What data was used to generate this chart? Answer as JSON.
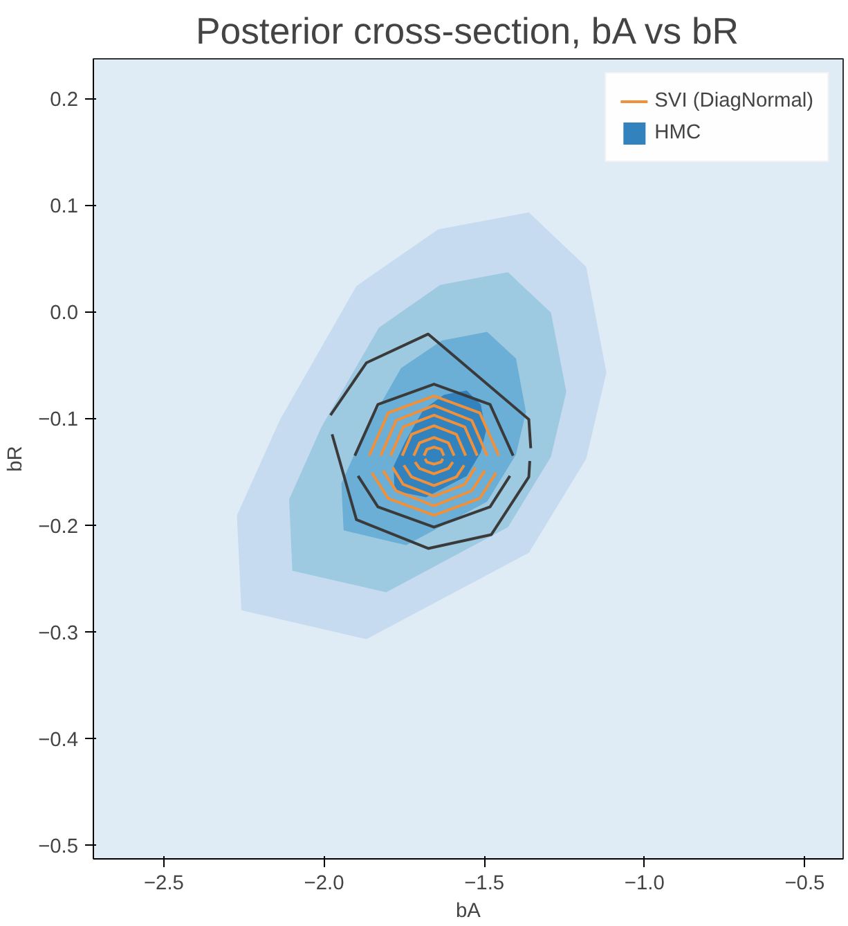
{
  "chart_data": {
    "type": "line",
    "title": "Posterior cross-section, bA vs bR",
    "xlabel": "bA",
    "ylabel": "bR",
    "xlim": [
      -2.72,
      -0.38
    ],
    "ylim": [
      -0.513,
      0.237
    ],
    "xticks": [
      {
        "value": -2.5,
        "label": "−2.5"
      },
      {
        "value": -2.0,
        "label": "−2.0"
      },
      {
        "value": -1.5,
        "label": "−1.5"
      },
      {
        "value": -1.0,
        "label": "−1.0"
      },
      {
        "value": -0.5,
        "label": "−0.5"
      }
    ],
    "yticks": [
      {
        "value": -0.5,
        "label": "−0.5"
      },
      {
        "value": -0.4,
        "label": "−0.4"
      },
      {
        "value": -0.3,
        "label": "−0.3"
      },
      {
        "value": -0.2,
        "label": "−0.2"
      },
      {
        "value": -0.1,
        "label": "−0.1"
      },
      {
        "value": 0.0,
        "label": "0.0"
      },
      0.1,
      0.2
    ],
    "grid": false,
    "legend": "top right",
    "series": [
      {
        "type": "area",
        "color": "#c6dbef",
        "x": [
          -1.361,
          -1.182,
          -1.119,
          -1.182,
          -1.361,
          -1.868,
          -2.258,
          -2.272,
          -2.137,
          -1.899,
          -1.644
        ],
        "values": [
          0.093,
          0.042,
          -0.057,
          -0.138,
          -0.226,
          -0.307,
          -0.28,
          -0.191,
          -0.101,
          0.024,
          0.077
        ]
      },
      {
        "type": "area",
        "color": "#9ecae1",
        "x": [
          -1.426,
          -1.292,
          -1.244,
          -1.292,
          -1.426,
          -1.806,
          -2.099,
          -2.109,
          -2.008,
          -1.829,
          -1.638
        ],
        "values": [
          0.037,
          -0.001,
          -0.075,
          -0.136,
          -0.202,
          -0.263,
          -0.243,
          -0.176,
          -0.108,
          -0.015,
          0.025
        ]
      },
      {
        "type": "area",
        "color": "#6baed6",
        "x": [
          -1.491,
          -1.401,
          -1.37,
          -1.401,
          -1.491,
          -1.744,
          -1.939,
          -1.946,
          -1.879,
          -1.76,
          -1.632
        ],
        "values": [
          -0.019,
          -0.044,
          -0.094,
          -0.134,
          -0.178,
          -0.219,
          -0.205,
          -0.161,
          -0.116,
          -0.053,
          -0.027
        ]
      },
      {
        "type": "area",
        "name": "HMC",
        "color": "#3182bd",
        "x": [
          -1.555,
          -1.511,
          -1.495,
          -1.511,
          -1.555,
          -1.682,
          -1.78,
          -1.783,
          -1.749,
          -1.69,
          -1.626
        ],
        "values": [
          -0.074,
          -0.087,
          -0.112,
          -0.132,
          -0.154,
          -0.174,
          -0.168,
          -0.145,
          -0.123,
          -0.092,
          -0.078
        ]
      },
      {
        "color": "#3a3a3a",
        "x": [
          -1.98,
          -1.868,
          -1.675,
          -1.361,
          -1.355
        ],
        "values": [
          -0.097,
          -0.048,
          -0.021,
          -0.101,
          -0.128
        ]
      },
      {
        "color": "#3a3a3a",
        "x": [
          -1.975,
          -1.899,
          -1.675,
          -1.478,
          -1.361,
          -1.358
        ],
        "values": [
          -0.115,
          -0.195,
          -0.222,
          -0.209,
          -0.155,
          -0.14
        ]
      },
      {
        "color": "#3a3a3a",
        "x": [
          -1.904,
          -1.832,
          -1.657,
          -1.482,
          -1.41
        ],
        "values": [
          -0.135,
          -0.087,
          -0.068,
          -0.087,
          -0.135
        ]
      },
      {
        "color": "#3a3a3a",
        "x": [
          -1.894,
          -1.832,
          -1.657,
          -1.482,
          -1.42
        ],
        "values": [
          -0.154,
          -0.183,
          -0.202,
          -0.183,
          -0.154
        ]
      },
      {
        "name": "SVI (DiagNormal)",
        "color": "#f0903a",
        "x": [
          -1.859,
          -1.8,
          -1.657,
          -1.514,
          -1.455
        ],
        "values": [
          -0.135,
          -0.095,
          -0.079,
          -0.095,
          -0.135
        ]
      },
      {
        "color": "#f0903a",
        "x": [
          -1.851,
          -1.8,
          -1.657,
          -1.514,
          -1.463
        ],
        "values": [
          -0.151,
          -0.175,
          -0.191,
          -0.175,
          -0.151
        ]
      },
      {
        "color": "#f0903a",
        "x": [
          -1.823,
          -1.775,
          -1.657,
          -1.539,
          -1.491
        ],
        "values": [
          -0.135,
          -0.102,
          -0.088,
          -0.102,
          -0.135
        ]
      },
      {
        "color": "#f0903a",
        "x": [
          -1.816,
          -1.775,
          -1.657,
          -1.539,
          -1.498
        ],
        "values": [
          -0.149,
          -0.168,
          -0.182,
          -0.168,
          -0.149
        ]
      },
      {
        "color": "#f0903a",
        "x": [
          -1.792,
          -1.753,
          -1.657,
          -1.561,
          -1.522
        ],
        "values": [
          -0.135,
          -0.108,
          -0.097,
          -0.108,
          -0.135
        ]
      },
      {
        "color": "#f0903a",
        "x": [
          -1.786,
          -1.753,
          -1.657,
          -1.561,
          -1.528
        ],
        "values": [
          -0.146,
          -0.162,
          -0.173,
          -0.162,
          -0.146
        ]
      },
      {
        "color": "#f0903a",
        "x": [
          -1.756,
          -1.727,
          -1.657,
          -1.587,
          -1.558
        ],
        "values": [
          -0.135,
          -0.115,
          -0.107,
          -0.115,
          -0.135
        ]
      },
      {
        "color": "#f0903a",
        "x": [
          -1.751,
          -1.727,
          -1.657,
          -1.587,
          -1.563
        ],
        "values": [
          -0.144,
          -0.155,
          -0.163,
          -0.155,
          -0.144
        ]
      },
      {
        "color": "#f0903a",
        "x": [
          -1.72,
          -1.702,
          -1.657,
          -1.612,
          -1.594
        ],
        "values": [
          -0.135,
          -0.123,
          -0.118,
          -0.123,
          -0.135
        ]
      },
      {
        "color": "#f0903a",
        "x": [
          -1.716,
          -1.702,
          -1.657,
          -1.612,
          -1.598
        ],
        "values": [
          -0.141,
          -0.147,
          -0.152,
          -0.147,
          -0.141
        ]
      },
      {
        "color": "#f0903a",
        "x": [
          -1.688,
          -1.679,
          -1.657,
          -1.635,
          -1.626
        ],
        "values": [
          -0.135,
          -0.129,
          -0.127,
          -0.129,
          -0.135
        ]
      },
      {
        "color": "#f0903a",
        "x": [
          -1.685,
          -1.679,
          -1.657,
          -1.635,
          -1.629
        ],
        "values": [
          -0.138,
          -0.141,
          -0.143,
          -0.141,
          -0.138
        ]
      }
    ]
  }
}
